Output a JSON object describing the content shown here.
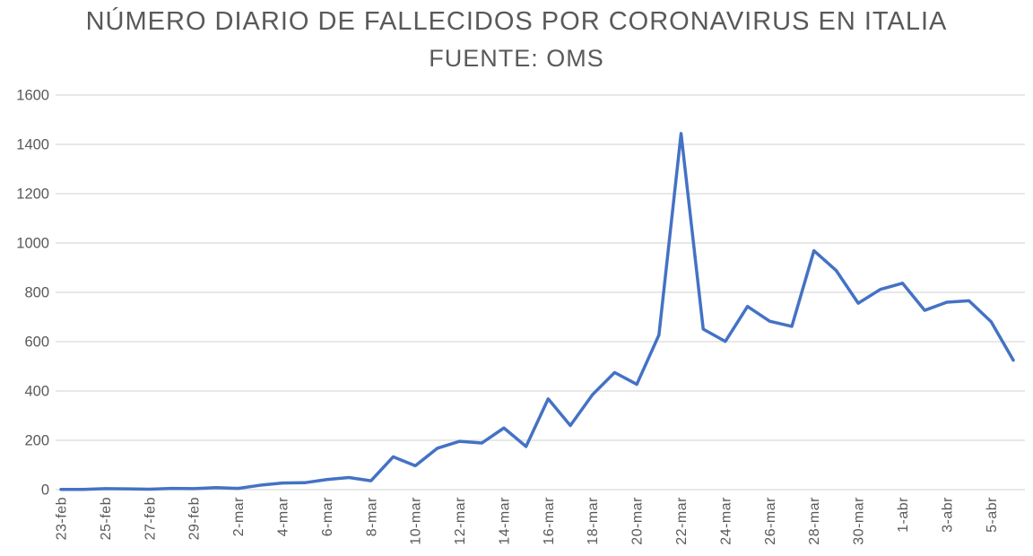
{
  "chart": {
    "title": "NÚMERO DIARIO DE FALLECIDOS POR CORONAVIRUS EN ITALIA",
    "subtitle": "FUENTE: OMS"
  },
  "chart_data": {
    "type": "line",
    "title": "NÚMERO DIARIO DE FALLECIDOS POR CORONAVIRUS EN ITALIA",
    "subtitle": "FUENTE: OMS",
    "categories": [
      "23-feb",
      "24-feb",
      "25-feb",
      "26-feb",
      "27-feb",
      "28-feb",
      "29-feb",
      "1-mar",
      "2-mar",
      "3-mar",
      "4-mar",
      "5-mar",
      "6-mar",
      "7-mar",
      "8-mar",
      "9-mar",
      "10-mar",
      "11-mar",
      "12-mar",
      "13-mar",
      "14-mar",
      "15-mar",
      "16-mar",
      "17-mar",
      "18-mar",
      "19-mar",
      "20-mar",
      "21-mar",
      "22-mar",
      "23-mar",
      "24-mar",
      "25-mar",
      "26-mar",
      "27-mar",
      "28-mar",
      "29-mar",
      "30-mar",
      "31-mar",
      "1-abr",
      "2-abr",
      "3-abr",
      "4-abr",
      "5-abr",
      "6-abr"
    ],
    "values": [
      1,
      1,
      4,
      3,
      2,
      5,
      4,
      8,
      5,
      18,
      27,
      28,
      41,
      49,
      36,
      133,
      97,
      168,
      196,
      189,
      250,
      175,
      368,
      260,
      385,
      475,
      427,
      627,
      1444,
      651,
      601,
      743,
      683,
      662,
      969,
      889,
      756,
      812,
      837,
      727,
      760,
      766,
      681,
      525
    ],
    "x_tick_labels": [
      "23-feb",
      "25-feb",
      "27-feb",
      "29-feb",
      "2-mar",
      "4-mar",
      "6-mar",
      "8-mar",
      "10-mar",
      "12-mar",
      "14-mar",
      "16-mar",
      "18-mar",
      "20-mar",
      "22-mar",
      "24-mar",
      "26-mar",
      "28-mar",
      "30-mar",
      "1-abr",
      "3-abr",
      "5-abr"
    ],
    "tick_every": 2,
    "ylim": [
      0,
      1600
    ],
    "y_tick_step": 200,
    "grid": true,
    "legend": false,
    "line_color": "#4472C4",
    "gridline_color": "#D9D9D9",
    "axis_label_color": "#595959",
    "title_color": "#595959"
  }
}
